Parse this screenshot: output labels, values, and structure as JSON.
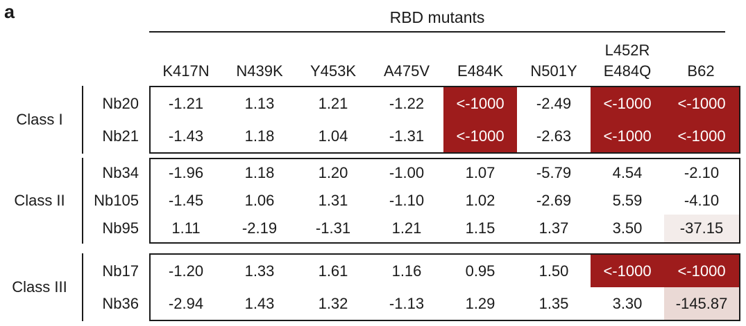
{
  "panel_label": "a",
  "column_group_title": "RBD mutants",
  "chart_data": {
    "type": "table",
    "columns": [
      {
        "lines": [
          "K417N"
        ]
      },
      {
        "lines": [
          "N439K"
        ]
      },
      {
        "lines": [
          "Y453K"
        ]
      },
      {
        "lines": [
          "A475V"
        ]
      },
      {
        "lines": [
          "E484K"
        ]
      },
      {
        "lines": [
          "N501Y"
        ]
      },
      {
        "lines": [
          "L452R",
          "E484Q"
        ]
      },
      {
        "lines": [
          "B62"
        ]
      }
    ],
    "groups": [
      {
        "label": "Class I",
        "rows": [
          {
            "name": "Nb20",
            "values": [
              "-1.21",
              "1.13",
              "1.21",
              "-1.22",
              "<-1000",
              "-2.49",
              "<-1000",
              "<-1000"
            ],
            "shade": [
              "",
              "",
              "",
              "",
              "hi",
              "",
              "hi",
              "hi"
            ]
          },
          {
            "name": "Nb21",
            "values": [
              "-1.43",
              "1.18",
              "1.04",
              "-1.31",
              "<-1000",
              "-2.63",
              "<-1000",
              "<-1000"
            ],
            "shade": [
              "",
              "",
              "",
              "",
              "hi",
              "",
              "hi",
              "hi"
            ]
          }
        ]
      },
      {
        "label": "Class II",
        "rows": [
          {
            "name": "Nb34",
            "values": [
              "-1.96",
              "1.18",
              "1.20",
              "-1.00",
              "1.07",
              "-5.79",
              "4.54",
              "-2.10"
            ],
            "shade": [
              "",
              "",
              "",
              "",
              "",
              "",
              "",
              ""
            ]
          },
          {
            "name": "Nb105",
            "values": [
              "-1.45",
              "1.06",
              "1.31",
              "-1.10",
              "1.02",
              "-2.69",
              "5.59",
              "-4.10"
            ],
            "shade": [
              "",
              "",
              "",
              "",
              "",
              "",
              "",
              ""
            ]
          },
          {
            "name": "Nb95",
            "values": [
              "1.11",
              "-2.19",
              "-1.31",
              "1.21",
              "1.15",
              "1.37",
              "3.50",
              "-37.15"
            ],
            "shade": [
              "",
              "",
              "",
              "",
              "",
              "",
              "",
              "lo1"
            ]
          }
        ]
      },
      {
        "label": "Class III",
        "rows": [
          {
            "name": "Nb17",
            "values": [
              "-1.20",
              "1.33",
              "1.61",
              "1.16",
              "0.95",
              "1.50",
              "<-1000",
              "<-1000"
            ],
            "shade": [
              "",
              "",
              "",
              "",
              "",
              "",
              "hi",
              "hi"
            ]
          },
          {
            "name": "Nb36",
            "values": [
              "-2.94",
              "1.43",
              "1.32",
              "-1.13",
              "1.29",
              "1.35",
              "3.30",
              "-145.87"
            ],
            "shade": [
              "",
              "",
              "",
              "",
              "",
              "",
              "",
              "lo2"
            ]
          }
        ]
      }
    ]
  }
}
